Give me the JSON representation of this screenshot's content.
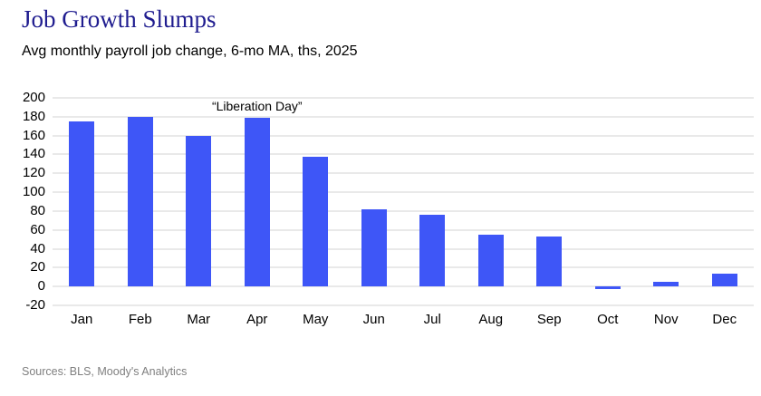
{
  "header": {
    "title": "Job Growth Slumps",
    "subtitle": "Avg monthly payroll job change, 6-mo MA, ths, 2025"
  },
  "chart_data": {
    "type": "bar",
    "title": "Job Growth Slumps",
    "subtitle": "Avg monthly payroll job change, 6-mo MA, ths, 2025",
    "categories": [
      "Jan",
      "Feb",
      "Mar",
      "Apr",
      "May",
      "Jun",
      "Jul",
      "Aug",
      "Sep",
      "Oct",
      "Nov",
      "Dec"
    ],
    "values": [
      175,
      180,
      160,
      179,
      138,
      82,
      76,
      55,
      53,
      -3,
      5,
      14
    ],
    "xlabel": "",
    "ylabel": "",
    "ylim": [
      -20,
      200
    ],
    "ytick_step": 20,
    "grid": true,
    "legend": "none",
    "annotation": {
      "text": "“Liberation Day”",
      "target_category": "Apr"
    },
    "bar_color": "#3e56f7",
    "grid_color": "#e9e9e9",
    "title_color": "#1f1c8f"
  },
  "footer": {
    "sources": "Sources: BLS, Moody's Analytics"
  }
}
